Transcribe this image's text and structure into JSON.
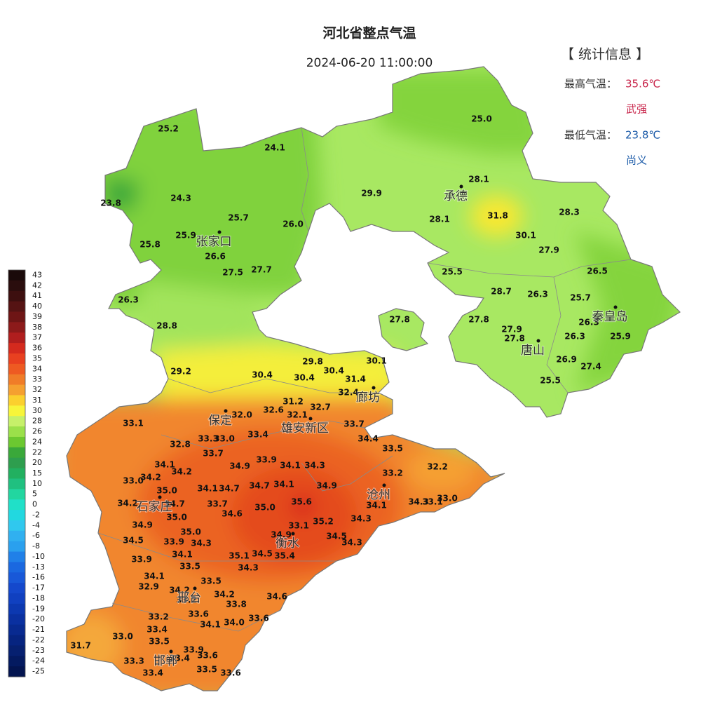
{
  "title": "河北省整点气温",
  "time": "2024-06-20 11:00:00",
  "stats": {
    "heading": "【 统计信息 】",
    "max_label": "最高气温：",
    "max_value": "35.6℃",
    "max_station": "武强",
    "min_label": "最低气温：",
    "min_value": "23.8℃",
    "min_station": "尚义"
  },
  "legend": {
    "ticks": [
      43,
      42,
      41,
      40,
      39,
      38,
      37,
      36,
      35,
      34,
      33,
      32,
      31,
      30,
      28,
      26,
      24,
      22,
      20,
      15,
      10,
      5,
      0,
      -2,
      -4,
      -6,
      -8,
      -10,
      -13,
      -16,
      -17,
      -18,
      -19,
      -20,
      -21,
      -22,
      -23,
      -24,
      -25
    ],
    "colors": [
      "#1a0a0a",
      "#2a0d0d",
      "#3d0f0f",
      "#551313",
      "#6e1515",
      "#8c1a1a",
      "#b01e1e",
      "#d42a1e",
      "#e84020",
      "#ee5a22",
      "#f07c28",
      "#f5a030",
      "#fbd02e",
      "#f7f53a",
      "#c6f06a",
      "#9be04a",
      "#6cc830",
      "#3aa83a",
      "#2e9e4e",
      "#22b060",
      "#20c080",
      "#22d6a0",
      "#20e0c8",
      "#22d8e0",
      "#30c8ee",
      "#30b0f0",
      "#2aa0ee",
      "#2080e8",
      "#1a68e0",
      "#1858d8",
      "#1448cc",
      "#1040c0",
      "#0c38b0",
      "#0a30a0",
      "#082a90",
      "#062480",
      "#062070",
      "#041a60",
      "#031450"
    ]
  },
  "cities": [
    "张家口",
    "承德",
    "秦皇岛",
    "唐山",
    "廊坊",
    "保定",
    "雄安新区",
    "沧州",
    "石家庄",
    "衡水",
    "邢台",
    "邯郸"
  ],
  "stations": [
    "25.2",
    "24.1",
    "23.8",
    "24.3",
    "25.7",
    "26.0",
    "25.9",
    "25.8",
    "26.6",
    "27.5",
    "27.7",
    "26.3",
    "28.8",
    "29.2",
    "25.0",
    "28.1",
    "29.9",
    "31.8",
    "28.3",
    "28.1",
    "30.1",
    "27.9",
    "25.5",
    "26.5",
    "28.7",
    "26.3",
    "25.7",
    "27.8",
    "27.8",
    "26.3",
    "27.9",
    "27.8",
    "26.3",
    "25.9",
    "26.9",
    "27.4",
    "25.5",
    "30.4",
    "29.8",
    "30.4",
    "30.4",
    "30.1",
    "31.4",
    "32.4",
    "31.2",
    "32.7",
    "32.6",
    "32.1",
    "32.0",
    "33.1",
    "33.7",
    "33.3",
    "33.0",
    "33.4",
    "34.4",
    "32.8",
    "33.5",
    "33.7",
    "33.9",
    "34.9",
    "34.1",
    "34.3",
    "34.1",
    "34.2",
    "33.2",
    "32.2",
    "33.0",
    "34.2",
    "35.0",
    "34.1",
    "34.7",
    "34.7",
    "34.1",
    "34.9",
    "34.2",
    "34.7",
    "33.7",
    "35.0",
    "35.6",
    "34.1",
    "34.3",
    "33.1",
    "33.0",
    "34.6",
    "35.0",
    "35.2",
    "34.3",
    "34.9",
    "35.0",
    "33.1",
    "34.9",
    "34.5",
    "34.5",
    "33.9",
    "34.3",
    "34.3",
    "34.1",
    "35.1",
    "34.5",
    "35.4",
    "33.9",
    "33.5",
    "34.3",
    "34.1",
    "33.5",
    "32.9",
    "34.2",
    "34.6",
    "33.2",
    "34.2",
    "33.8",
    "33.2",
    "33.6",
    "34.1",
    "34.0",
    "33.6",
    "33.4",
    "33.0",
    "33.5",
    "31.7",
    "33.9",
    "33.6",
    "33.3",
    "33.4",
    "33.5",
    "33.6",
    "33.4"
  ]
}
